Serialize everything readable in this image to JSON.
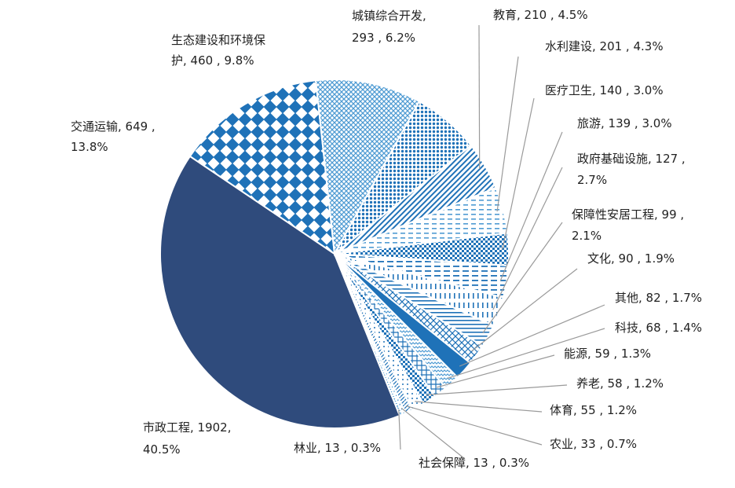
{
  "chart_data": {
    "type": "pie",
    "title": "",
    "slices": [
      {
        "name": "市政工程",
        "value": 1902,
        "percent": "40.5%",
        "label": [
          "市政工程, 1902,",
          "40.5%"
        ]
      },
      {
        "name": "交通运输",
        "value": 649,
        "percent": "13.8%",
        "label": [
          "交通运输, 649 ,",
          "13.8%"
        ]
      },
      {
        "name": "生态建设和环境保护",
        "value": 460,
        "percent": "9.8%",
        "label": [
          "生态建设和环境保",
          "护, 460 , 9.8%"
        ]
      },
      {
        "name": "城镇综合开发",
        "value": 293,
        "percent": "6.2%",
        "label": [
          "城镇综合开发,",
          "293 , 6.2%"
        ]
      },
      {
        "name": "教育",
        "value": 210,
        "percent": "4.5%",
        "label": [
          "教育, 210 , 4.5%"
        ]
      },
      {
        "name": "水利建设",
        "value": 201,
        "percent": "4.3%",
        "label": [
          "水利建设, 201 , 4.3%"
        ]
      },
      {
        "name": "医疗卫生",
        "value": 140,
        "percent": "3.0%",
        "label": [
          "医疗卫生, 140 , 3.0%"
        ]
      },
      {
        "name": "旅游",
        "value": 139,
        "percent": "3.0%",
        "label": [
          "旅游, 139 , 3.0%"
        ]
      },
      {
        "name": "政府基础设施",
        "value": 127,
        "percent": "2.7%",
        "label": [
          "政府基础设施, 127 ,",
          "2.7%"
        ]
      },
      {
        "name": "保障性安居工程",
        "value": 99,
        "percent": "2.1%",
        "label": [
          "保障性安居工程, 99 ,",
          "2.1%"
        ]
      },
      {
        "name": "文化",
        "value": 90,
        "percent": "1.9%",
        "label": [
          "文化, 90 , 1.9%"
        ]
      },
      {
        "name": "其他",
        "value": 82,
        "percent": "1.7%",
        "label": [
          "其他, 82 , 1.7%"
        ]
      },
      {
        "name": "科技",
        "value": 68,
        "percent": "1.4%",
        "label": [
          "科技, 68 , 1.4%"
        ]
      },
      {
        "name": "能源",
        "value": 59,
        "percent": "1.3%",
        "label": [
          "能源, 59 , 1.3%"
        ]
      },
      {
        "name": "养老",
        "value": 58,
        "percent": "1.2%",
        "label": [
          "养老, 58 , 1.2%"
        ]
      },
      {
        "name": "体育",
        "value": 55,
        "percent": "1.2%",
        "label": [
          "体育, 55 , 1.2%"
        ]
      },
      {
        "name": "农业",
        "value": 33,
        "percent": "0.7%",
        "label": [
          "农业, 33 , 0.7%"
        ]
      },
      {
        "name": "社会保障",
        "value": 13,
        "percent": "0.3%",
        "label": [
          "社会保障, 13 , 0.3%"
        ]
      },
      {
        "name": "林业",
        "value": 13,
        "percent": "0.3%",
        "label": [
          "林业, 13 , 0.3%"
        ]
      }
    ],
    "colors": {
      "dark": "#2f4b7c",
      "mid": "#1f72b8",
      "light": "#4f9bd3"
    }
  }
}
